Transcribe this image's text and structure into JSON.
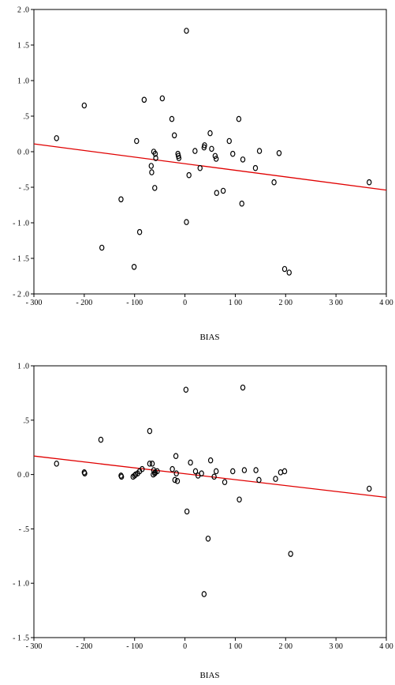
{
  "chart_data": [
    {
      "type": "scatter",
      "title": "",
      "xlabel": "BIAS",
      "ylabel": "",
      "xlim": [
        -300,
        400
      ],
      "ylim": [
        -2.0,
        2.0
      ],
      "xticks": [
        -300,
        -200,
        -100,
        0,
        100,
        200,
        300,
        400
      ],
      "xtick_labels": [
        "- 300",
        "- 200",
        "- 100",
        "0",
        "1 00",
        "2 00",
        "3 00",
        "4 00"
      ],
      "yticks": [
        2.0,
        1.5,
        1.0,
        0.5,
        0.0,
        -0.5,
        -1.0,
        -1.5,
        -2.0
      ],
      "ytick_labels": [
        "2 .0",
        "1 .5",
        "1 .0",
        ".5",
        "0 .0",
        "- .5",
        "- 1 .0",
        "- 1 .5",
        "- 2 .0"
      ],
      "grid": false,
      "fit_line": {
        "color": "#e00000",
        "x": [
          -300,
          400
        ],
        "y": [
          0.11,
          -0.54
        ]
      },
      "points": [
        [
          -255,
          0.19
        ],
        [
          -200,
          0.65
        ],
        [
          -165,
          -1.35
        ],
        [
          -127,
          -0.67
        ],
        [
          -101,
          -1.62
        ],
        [
          -96,
          0.15
        ],
        [
          -90,
          -1.13
        ],
        [
          -81,
          0.73
        ],
        [
          -67,
          -0.2
        ],
        [
          -66,
          -0.29
        ],
        [
          -62,
          0.0
        ],
        [
          -60,
          -0.51
        ],
        [
          -59,
          -0.03
        ],
        [
          -58,
          -0.09
        ],
        [
          -45,
          0.75
        ],
        [
          -26,
          0.46
        ],
        [
          -21,
          0.23
        ],
        [
          -14,
          -0.03
        ],
        [
          -13,
          -0.06
        ],
        [
          -12,
          -0.09
        ],
        [
          3,
          1.7
        ],
        [
          3,
          -0.99
        ],
        [
          8,
          -0.33
        ],
        [
          20,
          0.01
        ],
        [
          30,
          -0.23
        ],
        [
          38,
          0.06
        ],
        [
          39,
          0.09
        ],
        [
          50,
          0.26
        ],
        [
          53,
          0.04
        ],
        [
          60,
          -0.06
        ],
        [
          62,
          -0.1
        ],
        [
          63,
          -0.58
        ],
        [
          76,
          -0.55
        ],
        [
          88,
          0.15
        ],
        [
          95,
          -0.03
        ],
        [
          107,
          0.46
        ],
        [
          113,
          -0.73
        ],
        [
          115,
          -0.11
        ],
        [
          140,
          -0.23
        ],
        [
          148,
          0.01
        ],
        [
          177,
          -0.43
        ],
        [
          187,
          -0.02
        ],
        [
          198,
          -1.65
        ],
        [
          207,
          -1.7
        ],
        [
          366,
          -0.43
        ]
      ]
    },
    {
      "type": "scatter",
      "title": "",
      "xlabel": "BIAS",
      "ylabel": "",
      "xlim": [
        -300,
        400
      ],
      "ylim": [
        -1.5,
        1.0
      ],
      "xticks": [
        -300,
        -200,
        -100,
        0,
        100,
        200,
        300,
        400
      ],
      "xtick_labels": [
        "- 300",
        "- 200",
        "- 100",
        "0",
        "1 00",
        "2 00",
        "3 00",
        "4 00"
      ],
      "yticks": [
        1.0,
        0.5,
        0.0,
        -0.5,
        -1.0,
        -1.5
      ],
      "ytick_labels": [
        "1 .0",
        ".5",
        "0 .0",
        "- .5",
        "- 1 .0",
        "- 1 .5"
      ],
      "grid": false,
      "fit_line": {
        "color": "#e00000",
        "x": [
          -300,
          400
        ],
        "y": [
          0.17,
          -0.21
        ]
      },
      "points": [
        [
          -255,
          0.1
        ],
        [
          -200,
          0.02
        ],
        [
          -199,
          0.01
        ],
        [
          -167,
          0.32
        ],
        [
          -127,
          -0.01
        ],
        [
          -126,
          -0.02
        ],
        [
          -103,
          -0.02
        ],
        [
          -100,
          -0.01
        ],
        [
          -98,
          0.0
        ],
        [
          -94,
          0.01
        ],
        [
          -90,
          0.03
        ],
        [
          -85,
          0.05
        ],
        [
          -70,
          0.4
        ],
        [
          -70,
          0.1
        ],
        [
          -65,
          0.1
        ],
        [
          -63,
          0.0
        ],
        [
          -62,
          0.04
        ],
        [
          -60,
          0.01
        ],
        [
          -59,
          0.02
        ],
        [
          -55,
          0.03
        ],
        [
          -25,
          0.05
        ],
        [
          -20,
          -0.05
        ],
        [
          -18,
          0.17
        ],
        [
          -17,
          0.01
        ],
        [
          -15,
          -0.06
        ],
        [
          2,
          0.78
        ],
        [
          4,
          -0.34
        ],
        [
          11,
          0.11
        ],
        [
          21,
          0.03
        ],
        [
          26,
          -0.01
        ],
        [
          33,
          0.01
        ],
        [
          38,
          -1.1
        ],
        [
          46,
          -0.59
        ],
        [
          51,
          0.13
        ],
        [
          58,
          -0.02
        ],
        [
          62,
          0.03
        ],
        [
          79,
          -0.07
        ],
        [
          95,
          0.03
        ],
        [
          108,
          -0.23
        ],
        [
          115,
          0.8
        ],
        [
          118,
          0.04
        ],
        [
          141,
          0.04
        ],
        [
          147,
          -0.05
        ],
        [
          180,
          -0.04
        ],
        [
          190,
          0.02
        ],
        [
          198,
          0.03
        ],
        [
          210,
          -0.73
        ],
        [
          366,
          -0.13
        ]
      ]
    }
  ]
}
